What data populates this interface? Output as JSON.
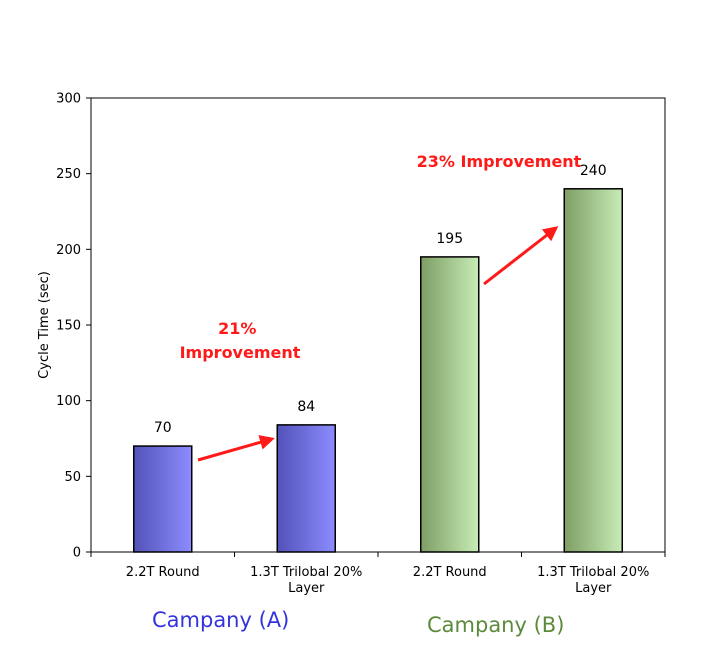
{
  "chart_data": {
    "type": "bar",
    "ylabel": "Cycle Time (sec)",
    "ylim": [
      0,
      300
    ],
    "yticks": [
      0,
      50,
      100,
      150,
      200,
      250,
      300
    ],
    "grid": false,
    "categories": [
      [
        "2.2T Round"
      ],
      [
        "1.3T Trilobal 20%",
        "Layer"
      ],
      [
        "2.2T Round"
      ],
      [
        "1.3T Trilobal 20%",
        "Layer"
      ]
    ],
    "values": [
      70,
      84,
      195,
      240
    ],
    "value_labels": [
      "70",
      "84",
      "195",
      "240"
    ],
    "bar_colors": [
      "#7c7cf0",
      "#7c7cf0",
      "#a9d39a",
      "#a9d39a"
    ],
    "groups": [
      {
        "label": "Campany (A)",
        "color": "#3333dd"
      },
      {
        "label": "Campany (B)",
        "color": "#5c8a3c"
      }
    ],
    "annotations": [
      {
        "lines": [
          "21%",
          "Improvement"
        ],
        "color": "#ff1a1a"
      },
      {
        "lines": [
          "23% Improvement"
        ],
        "color": "#ff1a1a"
      }
    ]
  }
}
